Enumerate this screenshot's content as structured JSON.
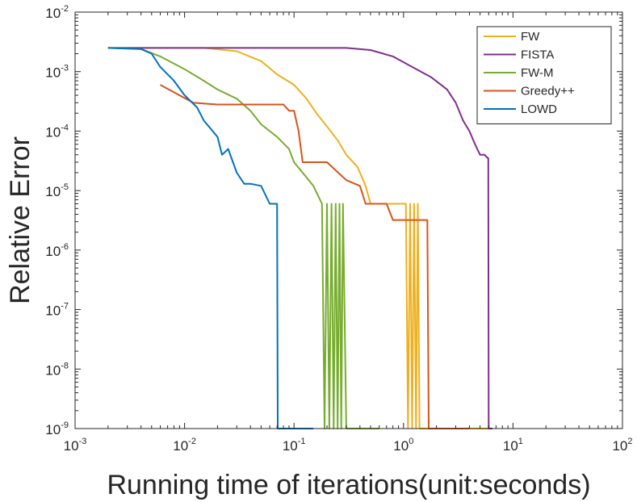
{
  "chart_data": {
    "type": "line",
    "title": "",
    "xlabel": "Running time of iterations(unit:seconds)",
    "ylabel": "Relative Error",
    "xscale": "log",
    "yscale": "log",
    "xlim": [
      0.001,
      100
    ],
    "ylim": [
      1e-09,
      0.01
    ],
    "x_ticks": [
      {
        "value": 0.001,
        "base": "10",
        "exp": "-3"
      },
      {
        "value": 0.01,
        "base": "10",
        "exp": "-2"
      },
      {
        "value": 0.1,
        "base": "10",
        "exp": "-1"
      },
      {
        "value": 1,
        "base": "10",
        "exp": "0"
      },
      {
        "value": 10,
        "base": "10",
        "exp": "1"
      },
      {
        "value": 100,
        "base": "10",
        "exp": "2"
      }
    ],
    "y_ticks": [
      {
        "value": 1e-09,
        "base": "10",
        "exp": "-9"
      },
      {
        "value": 1e-08,
        "base": "10",
        "exp": "-8"
      },
      {
        "value": 1e-07,
        "base": "10",
        "exp": "-7"
      },
      {
        "value": 1e-06,
        "base": "10",
        "exp": "-6"
      },
      {
        "value": 1e-05,
        "base": "10",
        "exp": "-5"
      },
      {
        "value": 0.0001,
        "base": "10",
        "exp": "-4"
      },
      {
        "value": 0.001,
        "base": "10",
        "exp": "-3"
      },
      {
        "value": 0.01,
        "base": "10",
        "exp": "-2"
      }
    ],
    "legend_position": "top-right",
    "grid": false,
    "series": [
      {
        "name": "FW",
        "color": "#EDB120",
        "x": [
          0.002,
          0.015,
          0.03,
          0.05,
          0.07,
          0.1,
          0.13,
          0.16,
          0.2,
          0.25,
          0.3,
          0.38,
          0.45,
          0.5,
          0.55,
          0.7,
          0.9,
          1.05,
          1.1,
          1.15,
          1.2,
          1.25,
          1.3,
          1.35,
          1.4,
          1.5,
          2,
          4,
          6.5
        ],
        "y": [
          0.0025,
          0.0025,
          0.0022,
          0.0015,
          0.0009,
          0.0006,
          0.00035,
          0.0002,
          0.00012,
          7e-05,
          4e-05,
          2.5e-05,
          1.2e-05,
          6e-06,
          6e-06,
          6e-06,
          6e-06,
          6e-06,
          1e-09,
          6e-06,
          1e-09,
          6e-06,
          1e-09,
          6e-06,
          1e-09,
          1e-09,
          1e-09,
          1e-09,
          1e-09
        ]
      },
      {
        "name": "FISTA",
        "color": "#7E2F8E",
        "x": [
          0.002,
          0.15,
          0.3,
          0.5,
          0.8,
          1.2,
          1.8,
          2.5,
          3,
          3.5,
          4,
          4.5,
          5,
          5.5,
          5.9,
          5.95,
          6.0,
          6.05,
          6.5
        ],
        "y": [
          0.0025,
          0.0025,
          0.0025,
          0.0023,
          0.0018,
          0.0012,
          0.0008,
          0.0005,
          0.0003,
          0.00015,
          0.0001,
          6e-05,
          4e-05,
          4e-05,
          3.5e-05,
          3.5e-05,
          1e-09,
          1e-09,
          1e-09
        ]
      },
      {
        "name": "FW-M",
        "color": "#77AC30",
        "x": [
          0.002,
          0.004,
          0.006,
          0.01,
          0.015,
          0.02,
          0.03,
          0.04,
          0.05,
          0.07,
          0.09,
          0.1,
          0.12,
          0.15,
          0.18,
          0.19,
          0.2,
          0.21,
          0.22,
          0.23,
          0.24,
          0.25,
          0.26,
          0.27,
          0.28,
          0.3,
          0.32,
          0.4,
          0.6
        ],
        "y": [
          0.0025,
          0.0024,
          0.0018,
          0.0011,
          0.0007,
          0.0005,
          0.00035,
          0.00022,
          0.00013,
          8e-05,
          5e-05,
          3e-05,
          2e-05,
          1.2e-05,
          6e-06,
          1e-09,
          6e-06,
          1e-09,
          6e-06,
          1e-09,
          6e-06,
          1e-09,
          6e-06,
          1e-09,
          6e-06,
          1e-09,
          1e-09,
          1e-09,
          1e-09
        ]
      },
      {
        "name": "Greedy++",
        "color": "#D95319",
        "x": [
          0.006,
          0.012,
          0.02,
          0.05,
          0.08,
          0.09,
          0.1,
          0.11,
          0.12,
          0.15,
          0.2,
          0.3,
          0.4,
          0.45,
          0.5,
          0.7,
          0.8,
          0.9,
          1.2,
          1.5,
          1.65,
          1.7,
          2.5,
          4
        ],
        "y": [
          0.0006,
          0.0003,
          0.00028,
          0.00028,
          0.00028,
          0.00022,
          0.00022,
          0.0001,
          3e-05,
          3e-05,
          3e-05,
          1.5e-05,
          1.2e-05,
          6e-06,
          6e-06,
          6e-06,
          3.2e-06,
          3.2e-06,
          3.2e-06,
          3.2e-06,
          3.2e-06,
          1e-09,
          1e-09,
          1e-09
        ]
      },
      {
        "name": "LOWD",
        "color": "#0072BD",
        "x": [
          0.002,
          0.004,
          0.005,
          0.006,
          0.008,
          0.01,
          0.013,
          0.015,
          0.02,
          0.022,
          0.025,
          0.03,
          0.035,
          0.04,
          0.05,
          0.06,
          0.065,
          0.07,
          0.071,
          0.08,
          0.1,
          0.15
        ],
        "y": [
          0.0025,
          0.0024,
          0.002,
          0.0012,
          0.0007,
          0.0004,
          0.00025,
          0.00015,
          8e-05,
          4e-05,
          5e-05,
          2e-05,
          1.3e-05,
          1.3e-05,
          1.2e-05,
          6e-06,
          6e-06,
          6e-06,
          1e-09,
          1e-09,
          1e-09,
          1e-09
        ]
      }
    ]
  }
}
